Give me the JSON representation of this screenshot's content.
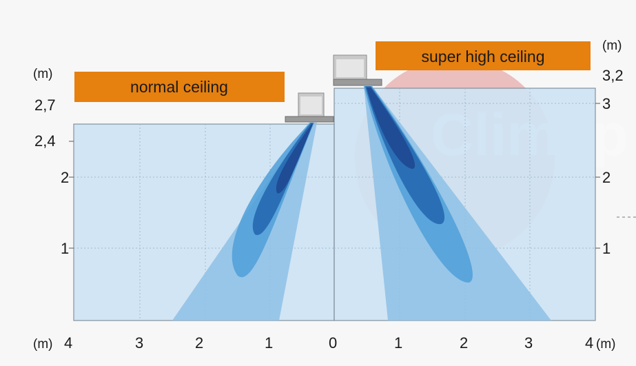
{
  "labels": {
    "normal_ceiling": "normal ceiling",
    "super_high_ceiling": "super high ceiling"
  },
  "watermark": "Climap",
  "axes": {
    "left_unit": "(m)",
    "left_ticks": [
      "2,7",
      "2,4",
      "2",
      "1"
    ],
    "right_unit": "(m)",
    "right_ticks": [
      "3,2",
      "3",
      "2",
      "1"
    ],
    "bottom_unit_left": "(m)",
    "bottom_unit_right": "(m)",
    "bottom_ticks": [
      "4",
      "3",
      "2",
      "1",
      "0",
      "1",
      "2",
      "3",
      "4"
    ]
  },
  "colors": {
    "room_fill": "#cfe4f4",
    "airflow_light": "#8ec1e6",
    "airflow_mid": "#4f9fd8",
    "airflow_dark": "#2a6fb5",
    "airflow_core": "#1f4c95",
    "banner": "#e6800f",
    "watermark_red": "#c9302c"
  },
  "icons": {
    "unit_normal": "ceiling-cassette-icon",
    "unit_super": "ceiling-cassette-icon"
  }
}
